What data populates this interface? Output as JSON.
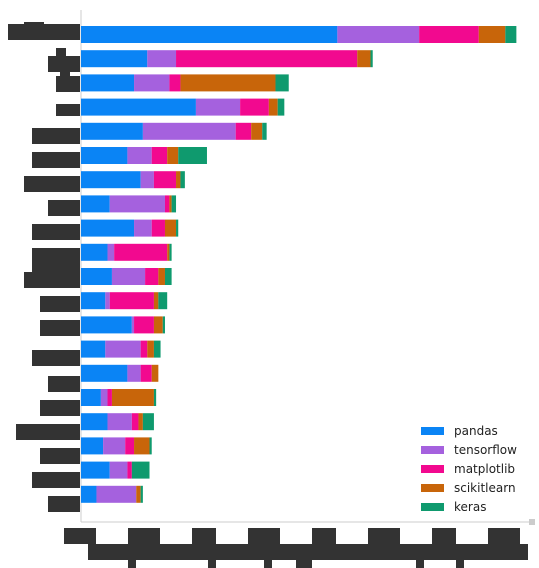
{
  "chart_data": {
    "type": "bar",
    "orientation": "horizontal",
    "stacked": true,
    "title": "",
    "xlabel": "",
    "ylabel": "",
    "xlim": [
      0,
      100
    ],
    "grid": false,
    "legend_position": "lower-right",
    "series": [
      {
        "name": "pandas",
        "color": "#0a84f5",
        "values": [
          58,
          15,
          12,
          26,
          14,
          10.5,
          13.5,
          6.5,
          12,
          6,
          7,
          5.5,
          11.5,
          5.5,
          10.5,
          4.5,
          6,
          5,
          6.5,
          3.5
        ]
      },
      {
        "name": "tensorflow",
        "color": "#a561de",
        "values": [
          18.5,
          6.5,
          8,
          10,
          21,
          5.5,
          3,
          12.5,
          4,
          1.5,
          7.5,
          1,
          0.5,
          8,
          3,
          1.5,
          5.5,
          5,
          4,
          9
        ]
      },
      {
        "name": "matplotlib",
        "color": "#f2098f",
        "values": [
          13.5,
          41,
          2.5,
          6.5,
          3.5,
          3.5,
          5,
          1,
          3,
          12,
          3,
          10,
          4.5,
          1.5,
          2.5,
          1,
          1.5,
          2,
          1,
          0
        ]
      },
      {
        "name": "scikitlearn",
        "color": "#c8650a",
        "values": [
          6,
          3,
          21.5,
          2,
          2.5,
          2.5,
          1,
          0.5,
          2.5,
          0.5,
          1.5,
          1,
          2,
          1.5,
          1.5,
          9.5,
          1,
          3.5,
          0,
          1
        ]
      },
      {
        "name": "keras",
        "color": "#0f9a6e",
        "values": [
          2.5,
          0.5,
          3,
          1.5,
          1,
          6.5,
          1,
          1,
          0.5,
          0.5,
          1.5,
          2,
          0.5,
          1.5,
          0,
          0.5,
          2.5,
          0.5,
          4,
          0.5
        ]
      }
    ]
  }
}
